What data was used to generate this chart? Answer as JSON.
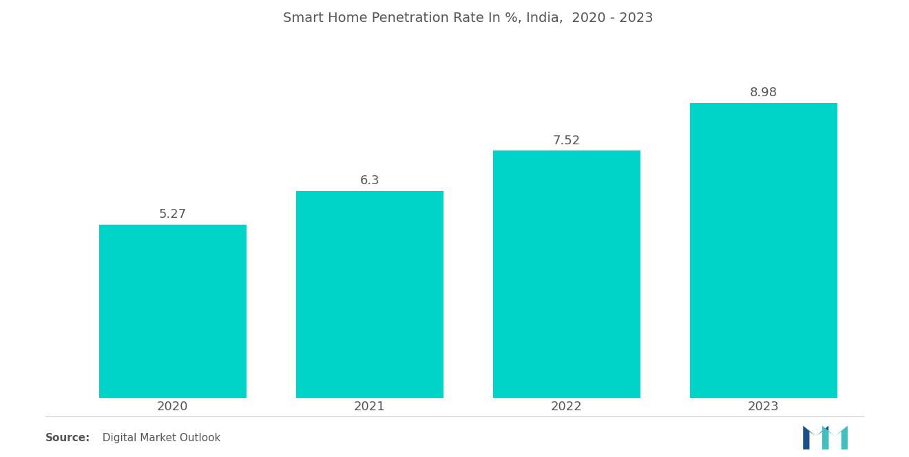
{
  "title": "Smart Home Penetration Rate In %, India,  2020 - 2023",
  "categories": [
    "2020",
    "2021",
    "2022",
    "2023"
  ],
  "values": [
    5.27,
    6.3,
    7.52,
    8.98
  ],
  "bar_color": "#00D4C8",
  "label_color": "#555555",
  "title_color": "#555555",
  "source_bold": "Source:",
  "source_normal": "  Digital Market Outlook",
  "background_color": "#ffffff",
  "ylim": [
    0,
    11
  ],
  "bar_width": 0.75,
  "title_fontsize": 14,
  "label_fontsize": 13,
  "tick_fontsize": 13,
  "source_fontsize": 11
}
